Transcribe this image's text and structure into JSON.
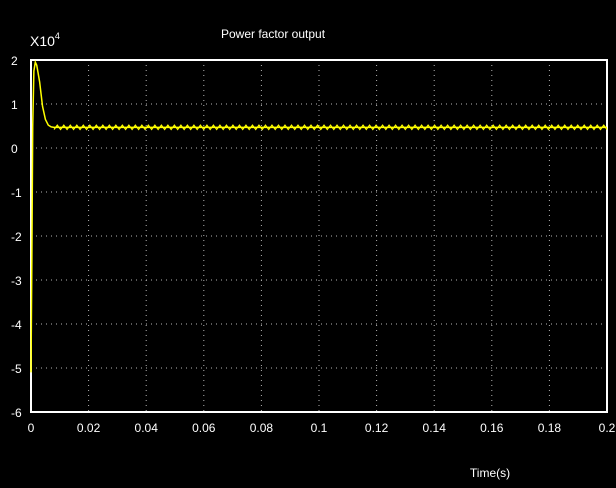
{
  "chart_data": {
    "type": "line",
    "title": "Power factor output",
    "xlabel": "Time(s)",
    "ylabel": "",
    "y_multiplier_label": "X10",
    "y_multiplier_exponent": "4",
    "xlim": [
      0,
      0.2
    ],
    "ylim": [
      -6,
      2
    ],
    "grid": true,
    "x_ticks": [
      0,
      0.02,
      0.04,
      0.06,
      0.08,
      0.1,
      0.12,
      0.14,
      0.16,
      0.18,
      0.2
    ],
    "x_tick_labels": [
      "0",
      "0.02",
      "0.04",
      "0.06",
      "0.08",
      "0.1",
      "0.12",
      "0.14",
      "0.16",
      "0.18",
      "0.2"
    ],
    "y_ticks": [
      2,
      1,
      0,
      -1,
      -2,
      -3,
      -4,
      -5,
      -6
    ],
    "y_tick_labels": [
      "2",
      "1",
      "0",
      "-1",
      "-2",
      "-3",
      "-4",
      "-5",
      "-6"
    ],
    "series": [
      {
        "color": "#ffff00",
        "x": [
          0,
          0.0003,
          0.0006,
          0.001,
          0.0015,
          0.002,
          0.003,
          0.004,
          0.005,
          0.006,
          0.007,
          0.008,
          0.01,
          0.2
        ],
        "y": [
          -5.1,
          -2.5,
          0.5,
          1.75,
          1.95,
          1.88,
          1.5,
          0.95,
          0.65,
          0.52,
          0.48,
          0.47,
          0.47,
          0.47
        ],
        "ripple": 0.05
      }
    ]
  },
  "colors": {
    "background": "#000000",
    "axes": "#ffffff",
    "grid": "#b4b4b4",
    "trace": "#ffff00"
  }
}
